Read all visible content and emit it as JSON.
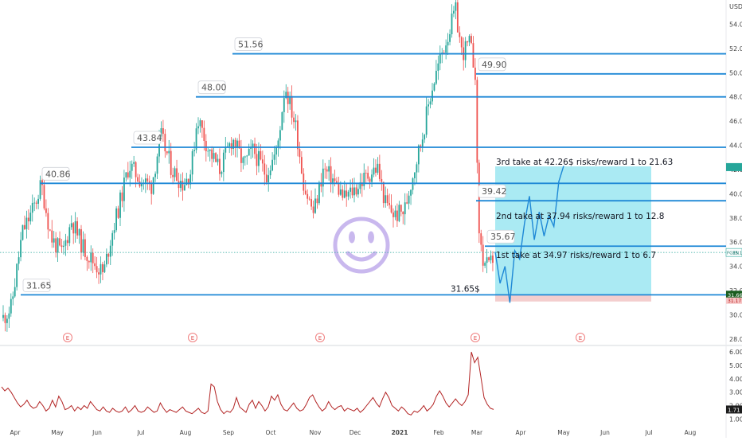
{
  "chart_data": {
    "type": "candlestick",
    "currency": "USD",
    "price_axis": {
      "ticks": [
        28.0,
        30.0,
        32.0,
        34.0,
        36.0,
        38.0,
        40.0,
        42.0,
        44.0,
        46.0,
        48.0,
        50.0,
        52.0,
        54.0
      ],
      "range": [
        27.6,
        56.0
      ]
    },
    "time_axis": {
      "labels": [
        "Apr",
        "May",
        "Jun",
        "Jul",
        "Aug",
        "Sep",
        "Oct",
        "Nov",
        "Dec",
        "2021",
        "Feb",
        "Mar",
        "Apr",
        "May",
        "Jun",
        "Jul",
        "Aug"
      ]
    },
    "levels": [
      {
        "value": 51.56,
        "label": "51.56"
      },
      {
        "value": 49.9,
        "label": "49.90"
      },
      {
        "value": 48.0,
        "label": "48.00"
      },
      {
        "value": 43.84,
        "label": "43.84"
      },
      {
        "value": 40.86,
        "label": "40.86"
      },
      {
        "value": 39.42,
        "label": "39.42"
      },
      {
        "value": 35.67,
        "label": "35.67"
      },
      {
        "value": 31.65,
        "label": "31.65"
      }
    ],
    "stop_label": "31.65$",
    "annotations": [
      {
        "text": "3rd take at 42.26$ risks/reward 1 to 21.63"
      },
      {
        "text": "2nd take at 37.94 risks/reward 1 to 12.8"
      },
      {
        "text": "1st take at 34.97 risks/reward 1 to 6.7"
      }
    ],
    "price_tags": {
      "symbol_tag": "FGEN",
      "current": "35.15",
      "highlight_top": "31.66",
      "highlight_bottom": "31.17"
    },
    "earnings_marker": "E",
    "projection_path": [
      35.2,
      32.6,
      34.0,
      31.0,
      35.3,
      34.6,
      37.6,
      39.8,
      36.2,
      38.5,
      36.5,
      38.2,
      37.3,
      41.0,
      42.3
    ],
    "volume_indicator": {
      "ticks": [
        "6.00",
        "5.00",
        "4.00",
        "3.00",
        "2.00",
        "1.00"
      ],
      "tick_values": [
        6,
        5,
        4,
        3,
        2,
        1
      ],
      "range": [
        0.55,
        6.3
      ],
      "current": "1.71",
      "values": [
        3.4,
        3.1,
        3.3,
        3.0,
        2.6,
        2.2,
        1.9,
        2.1,
        2.4,
        2.0,
        1.8,
        1.9,
        2.3,
        2.0,
        1.6,
        1.8,
        2.4,
        1.9,
        2.7,
        2.3,
        1.7,
        1.8,
        2.0,
        1.6,
        1.9,
        1.7,
        2.0,
        1.8,
        2.3,
        2.0,
        1.7,
        1.6,
        1.9,
        1.6,
        1.5,
        1.8,
        1.6,
        1.5,
        1.6,
        1.9,
        1.5,
        1.7,
        2.0,
        1.6,
        1.5,
        1.6,
        1.9,
        1.7,
        1.5,
        1.6,
        2.2,
        1.8,
        1.5,
        1.7,
        1.6,
        1.5,
        1.7,
        1.9,
        1.6,
        1.5,
        1.4,
        1.6,
        1.8,
        1.5,
        1.4,
        1.6,
        3.6,
        3.4,
        2.3,
        1.7,
        1.4,
        1.6,
        1.5,
        1.8,
        2.6,
        1.9,
        1.7,
        1.5,
        2.1,
        2.4,
        1.8,
        2.3,
        2.0,
        1.6,
        1.9,
        2.7,
        2.4,
        2.8,
        2.1,
        1.7,
        1.6,
        1.9,
        2.2,
        1.8,
        1.6,
        1.7,
        2.1,
        2.6,
        2.8,
        2.3,
        1.9,
        1.6,
        1.8,
        2.3,
        1.9,
        1.7,
        1.9,
        2.0,
        1.6,
        1.8,
        1.7,
        1.6,
        1.8,
        1.5,
        1.7,
        2.0,
        2.3,
        2.6,
        2.2,
        1.9,
        2.5,
        3.0,
        2.6,
        2.0,
        1.8,
        1.6,
        1.9,
        1.7,
        1.4,
        1.3,
        1.6,
        1.5,
        1.7,
        2.0,
        1.6,
        1.8,
        2.1,
        2.7,
        3.1,
        2.7,
        2.2,
        1.9,
        2.2,
        2.5,
        2.2,
        2.0,
        2.3,
        2.8,
        6.0,
        5.2,
        5.6,
        4.1,
        2.6,
        2.1,
        1.8,
        1.71
      ]
    }
  }
}
